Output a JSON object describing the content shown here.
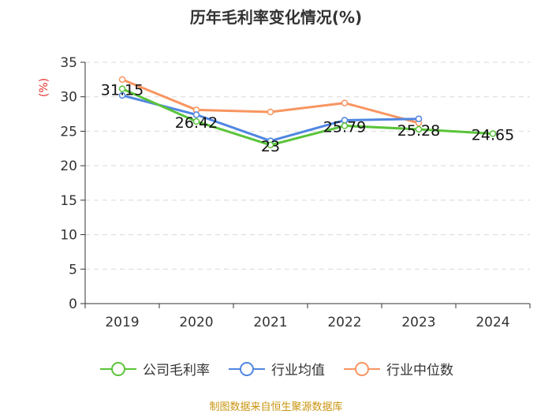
{
  "title": "历年毛利率变化情况(%)",
  "source": "制图数据来自恒生聚源数据库",
  "colors": {
    "axis": "#333333",
    "grid": "#d9d9d9",
    "unit_label": "#e8312f",
    "company": "#5ac43a",
    "industry_avg": "#5086e0",
    "industry_median": "#f89560"
  },
  "chart_data": {
    "type": "line",
    "title": "历年毛利率变化情况(%)",
    "ylabel": "(%)",
    "xlabel": "",
    "categories": [
      "2019",
      "2020",
      "2021",
      "2022",
      "2023",
      "2024"
    ],
    "ylim": [
      0,
      35
    ],
    "yticks": [
      0,
      5,
      10,
      15,
      20,
      25,
      30,
      35
    ],
    "grid": true,
    "legend_position": "bottom",
    "series": [
      {
        "name": "公司毛利率",
        "color_key": "company",
        "values": [
          31.15,
          26.42,
          23,
          25.79,
          25.28,
          24.65
        ],
        "labels": [
          "31.15",
          "26.42",
          "23",
          "25.79",
          "25.28",
          "24.65"
        ]
      },
      {
        "name": "行业均值",
        "color_key": "industry_avg",
        "values": [
          30.2,
          27.4,
          23.6,
          26.6,
          26.8,
          null
        ]
      },
      {
        "name": "行业中位数",
        "color_key": "industry_median",
        "values": [
          32.5,
          28.1,
          27.8,
          29.1,
          26.2,
          null
        ]
      }
    ]
  }
}
